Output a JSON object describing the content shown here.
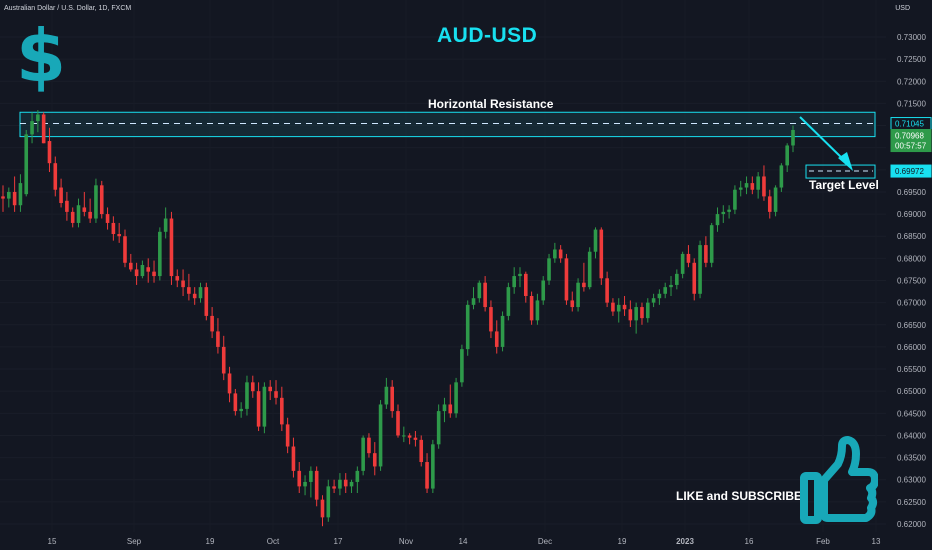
{
  "header": {
    "symbol_info": "Australian Dollar / U.S. Dollar, 1D, FXCM",
    "currency": "USD"
  },
  "title": "AUD-USD",
  "annotations": {
    "resistance_label": "Horizontal Resistance",
    "target_label": "Target Level",
    "cta_label": "LIKE and SUBSCRIBE"
  },
  "icons": {
    "logo": "dollar-sign-icon",
    "cta": "thumbs-up-icon"
  },
  "colors": {
    "background": "#131722",
    "bull": "#26a69a",
    "bull_candle": "#2e9a4a",
    "bear_candle": "#ef3b3b",
    "accent": "#18e0f0",
    "zone_fill": "#1b4b56"
  },
  "chart_data": {
    "type": "candlestick",
    "title": "AUD-USD",
    "ylim": [
      0.6195,
      0.7392
    ],
    "y_ticks": [
      0.73,
      0.725,
      0.72,
      0.715,
      0.71,
      0.705,
      0.7,
      0.695,
      0.69,
      0.685,
      0.68,
      0.675,
      0.67,
      0.665,
      0.66,
      0.655,
      0.65,
      0.645,
      0.64,
      0.635,
      0.63,
      0.625,
      0.62
    ],
    "x_tick_labels": [
      "15",
      "Sep",
      "19",
      "Oct",
      "17",
      "Nov",
      "14",
      "Dec",
      "19",
      "2023",
      "16",
      "Feb",
      "13"
    ],
    "price_labels": {
      "resistance": "0.71045",
      "current_high": "0.70968",
      "current_low": "00:57:57",
      "target": "0.69972"
    },
    "resistance_zone": [
      0.7075,
      0.713
    ],
    "resistance_level": 0.71045,
    "target_level": 0.69972,
    "candles": [
      {
        "o": 0.694,
        "h": 0.6965,
        "l": 0.6905,
        "c": 0.6935
      },
      {
        "o": 0.6935,
        "h": 0.696,
        "l": 0.6915,
        "c": 0.695
      },
      {
        "o": 0.695,
        "h": 0.6985,
        "l": 0.6905,
        "c": 0.692
      },
      {
        "o": 0.692,
        "h": 0.699,
        "l": 0.6905,
        "c": 0.697
      },
      {
        "o": 0.6945,
        "h": 0.709,
        "l": 0.694,
        "c": 0.708
      },
      {
        "o": 0.708,
        "h": 0.713,
        "l": 0.706,
        "c": 0.711
      },
      {
        "o": 0.711,
        "h": 0.7135,
        "l": 0.7085,
        "c": 0.7125
      },
      {
        "o": 0.7125,
        "h": 0.713,
        "l": 0.706,
        "c": 0.706
      },
      {
        "o": 0.7065,
        "h": 0.7095,
        "l": 0.6995,
        "c": 0.7015
      },
      {
        "o": 0.7015,
        "h": 0.703,
        "l": 0.694,
        "c": 0.6955
      },
      {
        "o": 0.696,
        "h": 0.698,
        "l": 0.6915,
        "c": 0.6925
      },
      {
        "o": 0.693,
        "h": 0.695,
        "l": 0.6885,
        "c": 0.6905
      },
      {
        "o": 0.6905,
        "h": 0.6915,
        "l": 0.687,
        "c": 0.688
      },
      {
        "o": 0.688,
        "h": 0.6935,
        "l": 0.687,
        "c": 0.692
      },
      {
        "o": 0.6915,
        "h": 0.695,
        "l": 0.6895,
        "c": 0.6905
      },
      {
        "o": 0.6905,
        "h": 0.6935,
        "l": 0.688,
        "c": 0.689
      },
      {
        "o": 0.689,
        "h": 0.698,
        "l": 0.688,
        "c": 0.6965
      },
      {
        "o": 0.6965,
        "h": 0.6975,
        "l": 0.689,
        "c": 0.69
      },
      {
        "o": 0.69,
        "h": 0.6915,
        "l": 0.6865,
        "c": 0.688
      },
      {
        "o": 0.688,
        "h": 0.6895,
        "l": 0.684,
        "c": 0.6855
      },
      {
        "o": 0.6855,
        "h": 0.688,
        "l": 0.6835,
        "c": 0.685
      },
      {
        "o": 0.685,
        "h": 0.6865,
        "l": 0.678,
        "c": 0.679
      },
      {
        "o": 0.679,
        "h": 0.681,
        "l": 0.677,
        "c": 0.6775
      },
      {
        "o": 0.6775,
        "h": 0.679,
        "l": 0.674,
        "c": 0.676
      },
      {
        "o": 0.676,
        "h": 0.6795,
        "l": 0.6755,
        "c": 0.6785
      },
      {
        "o": 0.678,
        "h": 0.68,
        "l": 0.6745,
        "c": 0.677
      },
      {
        "o": 0.677,
        "h": 0.6795,
        "l": 0.6745,
        "c": 0.676
      },
      {
        "o": 0.676,
        "h": 0.687,
        "l": 0.675,
        "c": 0.686
      },
      {
        "o": 0.686,
        "h": 0.6915,
        "l": 0.6845,
        "c": 0.689
      },
      {
        "o": 0.689,
        "h": 0.6905,
        "l": 0.674,
        "c": 0.676
      },
      {
        "o": 0.676,
        "h": 0.6775,
        "l": 0.6735,
        "c": 0.675
      },
      {
        "o": 0.675,
        "h": 0.6775,
        "l": 0.6715,
        "c": 0.6735
      },
      {
        "o": 0.6735,
        "h": 0.6765,
        "l": 0.6705,
        "c": 0.672
      },
      {
        "o": 0.672,
        "h": 0.6735,
        "l": 0.6695,
        "c": 0.671
      },
      {
        "o": 0.671,
        "h": 0.6745,
        "l": 0.67,
        "c": 0.6735
      },
      {
        "o": 0.6735,
        "h": 0.6745,
        "l": 0.666,
        "c": 0.667
      },
      {
        "o": 0.667,
        "h": 0.669,
        "l": 0.662,
        "c": 0.6635
      },
      {
        "o": 0.6635,
        "h": 0.6665,
        "l": 0.6585,
        "c": 0.66
      },
      {
        "o": 0.66,
        "h": 0.6625,
        "l": 0.6525,
        "c": 0.654
      },
      {
        "o": 0.654,
        "h": 0.6555,
        "l": 0.6475,
        "c": 0.6495
      },
      {
        "o": 0.6495,
        "h": 0.6505,
        "l": 0.6445,
        "c": 0.6455
      },
      {
        "o": 0.6455,
        "h": 0.6475,
        "l": 0.644,
        "c": 0.646
      },
      {
        "o": 0.646,
        "h": 0.6535,
        "l": 0.6445,
        "c": 0.652
      },
      {
        "o": 0.652,
        "h": 0.6535,
        "l": 0.6485,
        "c": 0.65
      },
      {
        "o": 0.65,
        "h": 0.652,
        "l": 0.641,
        "c": 0.642
      },
      {
        "o": 0.642,
        "h": 0.652,
        "l": 0.6405,
        "c": 0.651
      },
      {
        "o": 0.651,
        "h": 0.6525,
        "l": 0.648,
        "c": 0.65
      },
      {
        "o": 0.65,
        "h": 0.6525,
        "l": 0.647,
        "c": 0.6485
      },
      {
        "o": 0.6485,
        "h": 0.651,
        "l": 0.641,
        "c": 0.6425
      },
      {
        "o": 0.6425,
        "h": 0.644,
        "l": 0.636,
        "c": 0.6375
      },
      {
        "o": 0.6375,
        "h": 0.6395,
        "l": 0.6305,
        "c": 0.632
      },
      {
        "o": 0.632,
        "h": 0.634,
        "l": 0.627,
        "c": 0.6285
      },
      {
        "o": 0.6285,
        "h": 0.631,
        "l": 0.6265,
        "c": 0.6295
      },
      {
        "o": 0.6295,
        "h": 0.633,
        "l": 0.626,
        "c": 0.632
      },
      {
        "o": 0.632,
        "h": 0.633,
        "l": 0.624,
        "c": 0.6255
      },
      {
        "o": 0.6255,
        "h": 0.6265,
        "l": 0.6195,
        "c": 0.6215
      },
      {
        "o": 0.6215,
        "h": 0.63,
        "l": 0.6205,
        "c": 0.6285
      },
      {
        "o": 0.6285,
        "h": 0.63,
        "l": 0.627,
        "c": 0.628
      },
      {
        "o": 0.628,
        "h": 0.6315,
        "l": 0.6265,
        "c": 0.63
      },
      {
        "o": 0.63,
        "h": 0.6315,
        "l": 0.627,
        "c": 0.6285
      },
      {
        "o": 0.6285,
        "h": 0.63,
        "l": 0.627,
        "c": 0.6295
      },
      {
        "o": 0.6295,
        "h": 0.633,
        "l": 0.627,
        "c": 0.632
      },
      {
        "o": 0.632,
        "h": 0.64,
        "l": 0.631,
        "c": 0.6395
      },
      {
        "o": 0.6395,
        "h": 0.6405,
        "l": 0.635,
        "c": 0.636
      },
      {
        "o": 0.636,
        "h": 0.6385,
        "l": 0.631,
        "c": 0.633
      },
      {
        "o": 0.633,
        "h": 0.648,
        "l": 0.632,
        "c": 0.647
      },
      {
        "o": 0.647,
        "h": 0.653,
        "l": 0.646,
        "c": 0.651
      },
      {
        "o": 0.651,
        "h": 0.6525,
        "l": 0.644,
        "c": 0.6455
      },
      {
        "o": 0.6455,
        "h": 0.647,
        "l": 0.6395,
        "c": 0.64
      },
      {
        "o": 0.64,
        "h": 0.642,
        "l": 0.6385,
        "c": 0.64
      },
      {
        "o": 0.64,
        "h": 0.6405,
        "l": 0.638,
        "c": 0.6395
      },
      {
        "o": 0.6395,
        "h": 0.641,
        "l": 0.6375,
        "c": 0.639
      },
      {
        "o": 0.639,
        "h": 0.64,
        "l": 0.633,
        "c": 0.634
      },
      {
        "o": 0.634,
        "h": 0.636,
        "l": 0.627,
        "c": 0.628
      },
      {
        "o": 0.628,
        "h": 0.639,
        "l": 0.627,
        "c": 0.638
      },
      {
        "o": 0.638,
        "h": 0.647,
        "l": 0.637,
        "c": 0.6455
      },
      {
        "o": 0.6455,
        "h": 0.6485,
        "l": 0.643,
        "c": 0.647
      },
      {
        "o": 0.647,
        "h": 0.6515,
        "l": 0.644,
        "c": 0.645
      },
      {
        "o": 0.645,
        "h": 0.653,
        "l": 0.644,
        "c": 0.652
      },
      {
        "o": 0.652,
        "h": 0.6605,
        "l": 0.651,
        "c": 0.6595
      },
      {
        "o": 0.6595,
        "h": 0.6705,
        "l": 0.658,
        "c": 0.6695
      },
      {
        "o": 0.6695,
        "h": 0.6735,
        "l": 0.6685,
        "c": 0.671
      },
      {
        "o": 0.671,
        "h": 0.675,
        "l": 0.67,
        "c": 0.6745
      },
      {
        "o": 0.6745,
        "h": 0.676,
        "l": 0.668,
        "c": 0.669
      },
      {
        "o": 0.669,
        "h": 0.6705,
        "l": 0.662,
        "c": 0.6635
      },
      {
        "o": 0.6635,
        "h": 0.666,
        "l": 0.6585,
        "c": 0.66
      },
      {
        "o": 0.66,
        "h": 0.668,
        "l": 0.659,
        "c": 0.667
      },
      {
        "o": 0.667,
        "h": 0.6745,
        "l": 0.666,
        "c": 0.6735
      },
      {
        "o": 0.6735,
        "h": 0.678,
        "l": 0.672,
        "c": 0.676
      },
      {
        "o": 0.676,
        "h": 0.678,
        "l": 0.6735,
        "c": 0.6765
      },
      {
        "o": 0.6765,
        "h": 0.677,
        "l": 0.67,
        "c": 0.6715
      },
      {
        "o": 0.6715,
        "h": 0.6725,
        "l": 0.665,
        "c": 0.666
      },
      {
        "o": 0.666,
        "h": 0.672,
        "l": 0.665,
        "c": 0.6705
      },
      {
        "o": 0.6705,
        "h": 0.676,
        "l": 0.6695,
        "c": 0.675
      },
      {
        "o": 0.675,
        "h": 0.681,
        "l": 0.674,
        "c": 0.68
      },
      {
        "o": 0.68,
        "h": 0.6835,
        "l": 0.679,
        "c": 0.682
      },
      {
        "o": 0.682,
        "h": 0.683,
        "l": 0.679,
        "c": 0.68
      },
      {
        "o": 0.68,
        "h": 0.681,
        "l": 0.6695,
        "c": 0.6705
      },
      {
        "o": 0.6705,
        "h": 0.6725,
        "l": 0.668,
        "c": 0.669
      },
      {
        "o": 0.669,
        "h": 0.6755,
        "l": 0.668,
        "c": 0.6745
      },
      {
        "o": 0.6745,
        "h": 0.679,
        "l": 0.6725,
        "c": 0.6735
      },
      {
        "o": 0.6735,
        "h": 0.6825,
        "l": 0.673,
        "c": 0.6815
      },
      {
        "o": 0.6815,
        "h": 0.687,
        "l": 0.68,
        "c": 0.6865
      },
      {
        "o": 0.6865,
        "h": 0.687,
        "l": 0.674,
        "c": 0.6755
      },
      {
        "o": 0.6755,
        "h": 0.677,
        "l": 0.669,
        "c": 0.67
      },
      {
        "o": 0.67,
        "h": 0.671,
        "l": 0.667,
        "c": 0.668
      },
      {
        "o": 0.668,
        "h": 0.671,
        "l": 0.6655,
        "c": 0.6695
      },
      {
        "o": 0.6695,
        "h": 0.6715,
        "l": 0.667,
        "c": 0.6685
      },
      {
        "o": 0.6685,
        "h": 0.6705,
        "l": 0.6645,
        "c": 0.666
      },
      {
        "o": 0.666,
        "h": 0.67,
        "l": 0.663,
        "c": 0.669
      },
      {
        "o": 0.669,
        "h": 0.67,
        "l": 0.665,
        "c": 0.6665
      },
      {
        "o": 0.6665,
        "h": 0.671,
        "l": 0.6655,
        "c": 0.67
      },
      {
        "o": 0.67,
        "h": 0.672,
        "l": 0.669,
        "c": 0.671
      },
      {
        "o": 0.671,
        "h": 0.673,
        "l": 0.6695,
        "c": 0.672
      },
      {
        "o": 0.672,
        "h": 0.6745,
        "l": 0.671,
        "c": 0.6735
      },
      {
        "o": 0.6735,
        "h": 0.676,
        "l": 0.6715,
        "c": 0.674
      },
      {
        "o": 0.674,
        "h": 0.6775,
        "l": 0.673,
        "c": 0.6765
      },
      {
        "o": 0.6765,
        "h": 0.6815,
        "l": 0.6755,
        "c": 0.681
      },
      {
        "o": 0.681,
        "h": 0.683,
        "l": 0.678,
        "c": 0.679
      },
      {
        "o": 0.679,
        "h": 0.68,
        "l": 0.6705,
        "c": 0.672
      },
      {
        "o": 0.672,
        "h": 0.684,
        "l": 0.671,
        "c": 0.683
      },
      {
        "o": 0.683,
        "h": 0.685,
        "l": 0.678,
        "c": 0.679
      },
      {
        "o": 0.679,
        "h": 0.688,
        "l": 0.678,
        "c": 0.6875
      },
      {
        "o": 0.6875,
        "h": 0.6915,
        "l": 0.686,
        "c": 0.69
      },
      {
        "o": 0.69,
        "h": 0.692,
        "l": 0.688,
        "c": 0.6905
      },
      {
        "o": 0.6905,
        "h": 0.692,
        "l": 0.689,
        "c": 0.691
      },
      {
        "o": 0.691,
        "h": 0.6965,
        "l": 0.69,
        "c": 0.6955
      },
      {
        "o": 0.6955,
        "h": 0.6975,
        "l": 0.694,
        "c": 0.696
      },
      {
        "o": 0.696,
        "h": 0.6985,
        "l": 0.6945,
        "c": 0.697
      },
      {
        "o": 0.697,
        "h": 0.6985,
        "l": 0.6945,
        "c": 0.6955
      },
      {
        "o": 0.6955,
        "h": 0.6995,
        "l": 0.6935,
        "c": 0.6985
      },
      {
        "o": 0.6985,
        "h": 0.701,
        "l": 0.693,
        "c": 0.694
      },
      {
        "o": 0.694,
        "h": 0.6955,
        "l": 0.689,
        "c": 0.6905
      },
      {
        "o": 0.6905,
        "h": 0.6965,
        "l": 0.6895,
        "c": 0.696
      },
      {
        "o": 0.696,
        "h": 0.7015,
        "l": 0.695,
        "c": 0.701
      },
      {
        "o": 0.701,
        "h": 0.706,
        "l": 0.6995,
        "c": 0.7055
      },
      {
        "o": 0.7055,
        "h": 0.71,
        "l": 0.704,
        "c": 0.709
      }
    ]
  }
}
